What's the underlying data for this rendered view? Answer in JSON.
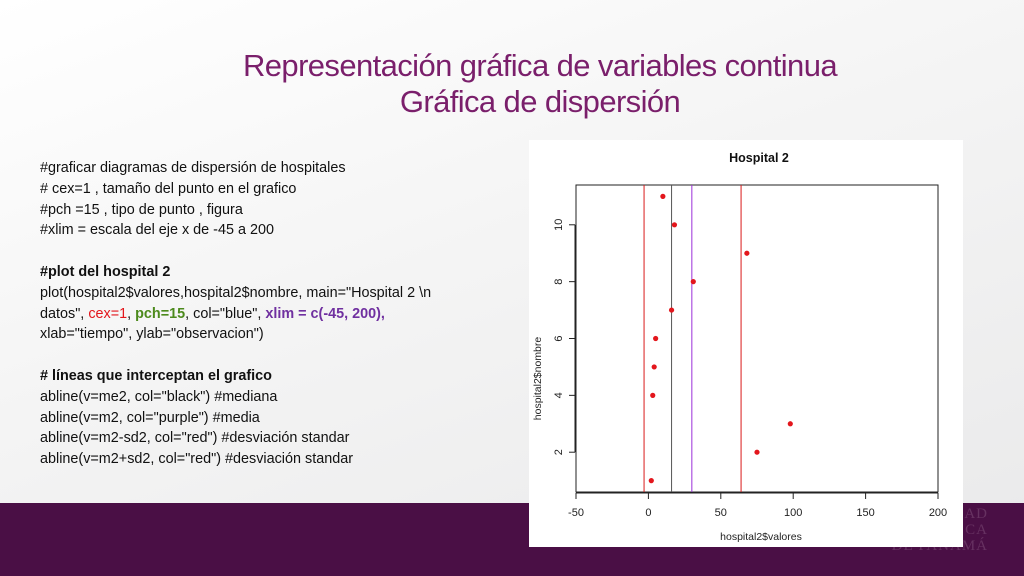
{
  "slide": {
    "title_line1": "Representación gráfica de variables continua",
    "title_line2": "Gráfica de dispersión",
    "footer_logo_line1": "AD",
    "footer_logo_line2": "CA",
    "footer_logo_line3": "DE PANAMÁ",
    "colors": {
      "title": "#7a1f6b",
      "footer": "#4a0f45"
    }
  },
  "code": {
    "lines": [
      "#graficar diagramas de dispersión de hospitales",
      "# cex=1 , tamaño del punto en el grafico",
      "#pch =15 , tipo de punto , figura",
      "#xlim = escala del eje x de -45 a 200",
      "#plot del hospital 2",
      "plot(hospital2$valores,hospital2$nombre, main=\"Hospital 2 \\n",
      "datos\", ",
      "cex=1",
      ", ",
      "pch=15",
      ", col=\"blue\", ",
      "xlim = c(-45, 200),",
      "xlab=\"tiempo\", ylab=\"observacion\")",
      "# líneas que interceptan el grafico",
      "abline(v=me2, col=\"black\") #mediana",
      "abline(v=m2, col=\"purple\")  #media",
      "abline(v=m2-sd2, col=\"red\") #desviación standar",
      "abline(v=m2+sd2, col=\"red\") #desviación standar"
    ]
  },
  "chart_data": {
    "type": "scatter",
    "title": "Hospital 2",
    "xlabel": "hospital2$valores",
    "ylabel": "hospital2$nombre",
    "xlim": [
      -50,
      200
    ],
    "ylim": [
      0.6,
      11.4
    ],
    "x_ticks": [
      -50,
      0,
      50,
      100,
      150,
      200
    ],
    "y_ticks": [
      2,
      4,
      6,
      8,
      10
    ],
    "points": [
      {
        "x": 2,
        "y": 1
      },
      {
        "x": 75,
        "y": 2
      },
      {
        "x": 98,
        "y": 3
      },
      {
        "x": 3,
        "y": 4
      },
      {
        "x": 4,
        "y": 5
      },
      {
        "x": 5,
        "y": 6
      },
      {
        "x": 16,
        "y": 7
      },
      {
        "x": 31,
        "y": 8
      },
      {
        "x": 68,
        "y": 9
      },
      {
        "x": 18,
        "y": 10
      },
      {
        "x": 10,
        "y": 11
      }
    ],
    "point_color": "#e3161c",
    "vlines": [
      {
        "x": -3,
        "color": "#d91a1a"
      },
      {
        "x": 16,
        "color": "#555555"
      },
      {
        "x": 30,
        "color": "#9b30d9"
      },
      {
        "x": 64,
        "color": "#d91a1a"
      }
    ],
    "grid": false
  }
}
